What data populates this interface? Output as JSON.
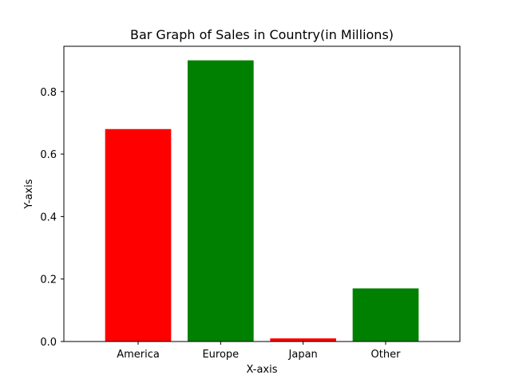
{
  "chart_data": {
    "type": "bar",
    "title": "Bar Graph of Sales in Country(in Millions)",
    "xlabel": "X-axis",
    "ylabel": "Y-axis",
    "categories": [
      "America",
      "Europe",
      "Japan",
      "Other"
    ],
    "values": [
      0.68,
      0.9,
      0.01,
      0.17
    ],
    "colors": [
      "#ff0000",
      "#008000",
      "#ff0000",
      "#008000"
    ],
    "ylim": [
      0,
      0.945
    ],
    "yticks": [
      0.0,
      0.2,
      0.4,
      0.6,
      0.8
    ],
    "ytick_labels": [
      "0.0",
      "0.2",
      "0.4",
      "0.6",
      "0.8"
    ],
    "grid": false,
    "legend": "none"
  }
}
